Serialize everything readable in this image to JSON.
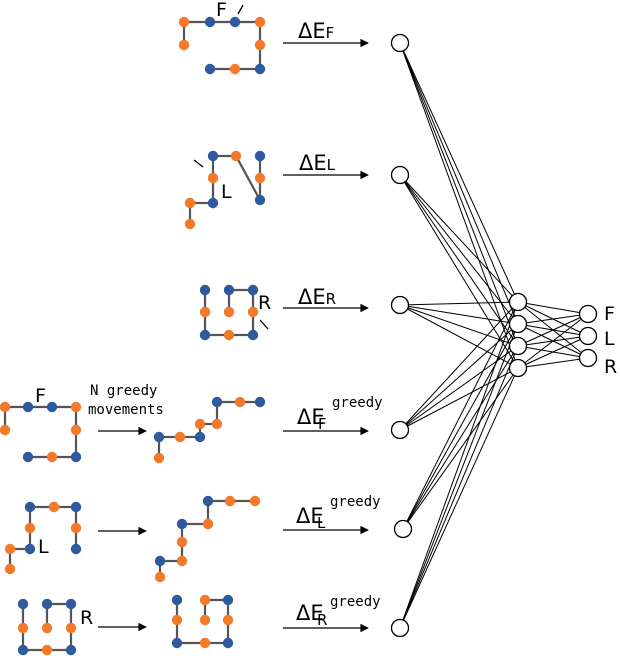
{
  "colors": {
    "orange": "#f47a2a",
    "blue": "#2f5a9e",
    "bond": "#555555",
    "edge": "#000000"
  },
  "move_labels": {
    "forward": "F",
    "left": "L",
    "right": "R"
  },
  "energy": {
    "delta": "ΔE",
    "sub_f": "F",
    "sub_l": "L",
    "sub_r": "R",
    "greedy": "greedy"
  },
  "greedy_caption": {
    "line1": "N greedy",
    "line2": "movements"
  },
  "outputs": [
    "F",
    "L",
    "R"
  ]
}
